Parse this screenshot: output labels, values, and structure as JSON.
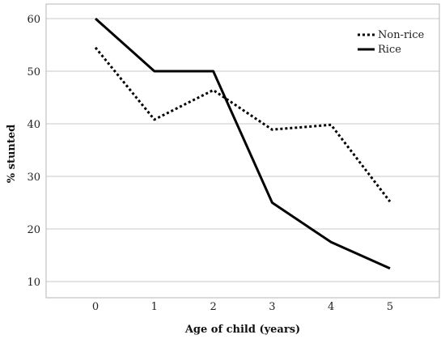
{
  "chart_data": {
    "type": "line",
    "xlabel": "Age of child (years)",
    "ylabel": "% stunted",
    "x": [
      0,
      1,
      2,
      3,
      4,
      5
    ],
    "ylim": [
      5,
      63
    ],
    "yticks": [
      10,
      20,
      30,
      40,
      50,
      60
    ],
    "grid": "horizontal",
    "legend_position": "top-right",
    "series": [
      {
        "name": "Non-rice",
        "style": "dotted",
        "color": "#000000",
        "values": [
          54.5,
          40.8,
          46.4,
          38.9,
          39.8,
          25.2
        ]
      },
      {
        "name": "Rice",
        "style": "solid",
        "color": "#000000",
        "values": [
          60,
          50,
          50,
          25,
          17.5,
          12.5
        ]
      }
    ]
  }
}
